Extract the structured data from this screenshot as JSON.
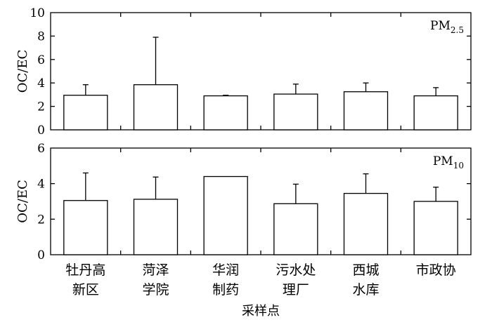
{
  "chart_data": [
    {
      "type": "bar",
      "panel_label": "PM",
      "panel_label_sub": "2.5",
      "ylabel": "OC/EC",
      "ylim": [
        0,
        10
      ],
      "yticks": [
        "0",
        "2",
        "4",
        "6",
        "8",
        "10"
      ],
      "categories": [
        "牡丹高新区",
        "菏泽学院",
        "华润制药",
        "污水处理厂",
        "西城水库",
        "市政协"
      ],
      "values": [
        2.95,
        3.85,
        2.9,
        3.05,
        3.25,
        2.9
      ],
      "error_upper": [
        0.9,
        4.05,
        0.05,
        0.85,
        0.75,
        0.7
      ]
    },
    {
      "type": "bar",
      "panel_label": "PM",
      "panel_label_sub": "10",
      "ylabel": "OC/EC",
      "ylim": [
        0,
        6
      ],
      "yticks": [
        "0",
        "2",
        "4",
        "6"
      ],
      "categories": [
        "牡丹高新区",
        "菏泽学院",
        "华润制药",
        "污水处理厂",
        "西城水库",
        "市政协"
      ],
      "values": [
        3.05,
        3.12,
        4.4,
        2.87,
        3.45,
        3.0
      ],
      "error_upper": [
        1.55,
        1.25,
        0.0,
        1.1,
        1.1,
        0.8
      ]
    }
  ],
  "x_category_labels": [
    [
      "牡丹高",
      "新区"
    ],
    [
      "菏泽",
      "学院"
    ],
    [
      "华润",
      "制药"
    ],
    [
      "污水处",
      "理厂"
    ],
    [
      "西城",
      "水库"
    ],
    [
      "市政协"
    ]
  ],
  "xlabel": "采样点"
}
